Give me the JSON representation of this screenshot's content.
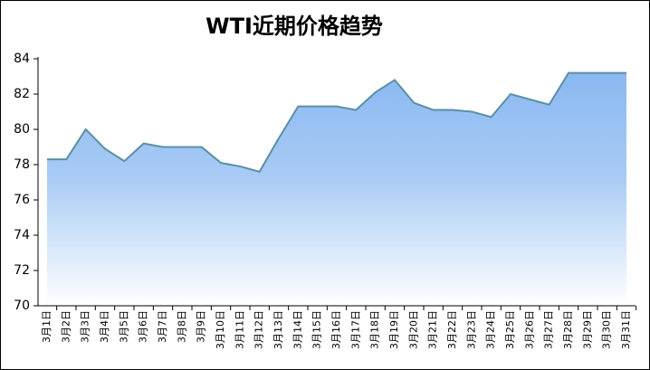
{
  "chart_data": {
    "type": "area",
    "title": "WTI近期价格趋势",
    "categories": [
      "3月1日",
      "3月2日",
      "3月3日",
      "3月4日",
      "3月5日",
      "3月6日",
      "3月7日",
      "3月8日",
      "3月9日",
      "3月10日",
      "3月11日",
      "3月12日",
      "3月13日",
      "3月14日",
      "3月15日",
      "3月16日",
      "3月17日",
      "3月18日",
      "3月19日",
      "3月20日",
      "3月21日",
      "3月22日",
      "3月23日",
      "3月24日",
      "3月25日",
      "3月26日",
      "3月27日",
      "3月28日",
      "3月29日",
      "3月30日",
      "3月31日"
    ],
    "values": [
      78.3,
      78.3,
      80.0,
      78.9,
      78.2,
      79.2,
      79.0,
      79.0,
      79.0,
      78.1,
      77.9,
      77.6,
      79.5,
      81.3,
      81.3,
      81.3,
      81.1,
      82.1,
      82.8,
      81.5,
      81.1,
      81.1,
      81.0,
      80.7,
      82.0,
      81.7,
      81.4,
      83.2,
      83.2,
      83.2,
      83.2
    ],
    "color": "#5b8fa3",
    "ylim": [
      70,
      84
    ],
    "yticks": [
      70,
      72,
      74,
      76,
      78,
      80,
      82,
      84
    ]
  }
}
